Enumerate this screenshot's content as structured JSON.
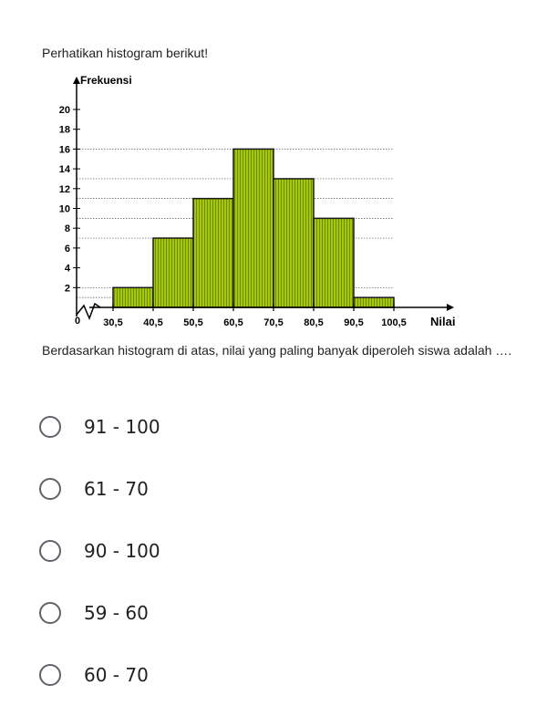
{
  "intro_text": "Perhatikan histogram berikut!",
  "question_text": "Berdasarkan histogram di atas, nilai yang paling banyak diperoleh siswa adalah ….",
  "options": [
    {
      "label": "91 - 100"
    },
    {
      "label": "61 - 70"
    },
    {
      "label": "90 - 100"
    },
    {
      "label": "59 - 60"
    },
    {
      "label": "60 - 70"
    }
  ],
  "colors": {
    "bar_fill": "#a6c80a",
    "bar_stroke": "#1a1a1a",
    "radio": "#5f6368"
  },
  "chart_data": {
    "type": "bar",
    "xlabel": "Nilai",
    "ylabel": "Frekuensi",
    "y_ticks": [
      2,
      4,
      6,
      8,
      10,
      12,
      14,
      16,
      18,
      20
    ],
    "x_ticks": [
      "30,5",
      "40,5",
      "50,5",
      "60,5",
      "70,5",
      "80,5",
      "90,5",
      "100,5"
    ],
    "origin_label": "0",
    "ylim": [
      0,
      20
    ],
    "bins": [
      {
        "from": 30.5,
        "to": 40.5,
        "value": 2
      },
      {
        "from": 40.5,
        "to": 50.5,
        "value": 7
      },
      {
        "from": 50.5,
        "to": 60.5,
        "value": 11
      },
      {
        "from": 60.5,
        "to": 70.5,
        "value": 16
      },
      {
        "from": 70.5,
        "to": 80.5,
        "value": 13
      },
      {
        "from": 80.5,
        "to": 90.5,
        "value": 9
      },
      {
        "from": 90.5,
        "to": 100.5,
        "value": 1
      }
    ],
    "reference_lines": [
      16,
      13,
      11,
      9,
      7,
      2,
      1
    ]
  }
}
